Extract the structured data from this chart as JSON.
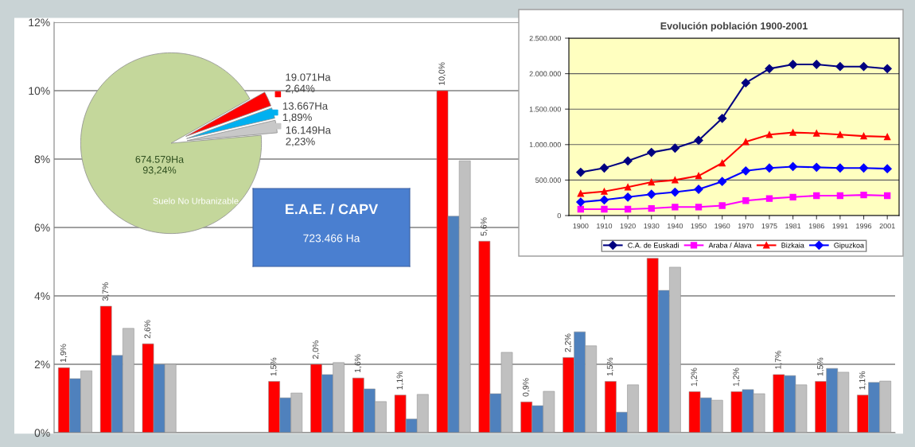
{
  "chart_data": [
    {
      "type": "bar",
      "categories": [
        null,
        null,
        null,
        null,
        null,
        null,
        null,
        null,
        null,
        null,
        null,
        null,
        null,
        null,
        null,
        null,
        null,
        null,
        null,
        null
      ],
      "series": [
        {
          "color": "#ff0000",
          "values": [
            1.9,
            3.7,
            2.6,
            null,
            null,
            1.5,
            2.0,
            1.6,
            1.1,
            10.0,
            5.6,
            0.9,
            2.2,
            1.5,
            5.1,
            1.2,
            1.2,
            1.7,
            1.5,
            1.1
          ],
          "value_labels": [
            "1,9%",
            "3,7%",
            "2,6%",
            null,
            null,
            "1,5%",
            "2,0%",
            "1,6%",
            "1,1%",
            "10,0%",
            "5,6%",
            "0,9%",
            "2,2%",
            "1,5%",
            null,
            "1,2%",
            "1,2%",
            "1,7%",
            "1,5%",
            "1,1%"
          ]
        },
        {
          "color": "#4f81bd",
          "values": [
            1.58,
            2.26,
            2.0,
            null,
            null,
            1.02,
            1.7,
            1.28,
            0.4,
            6.33,
            1.14,
            0.79,
            2.95,
            0.6,
            4.16,
            1.02,
            1.26,
            1.67,
            1.88,
            1.47
          ]
        },
        {
          "color": "#c0c0c0",
          "values": [
            1.81,
            3.05,
            2.0,
            null,
            null,
            1.16,
            2.05,
            0.91,
            1.12,
            7.95,
            2.35,
            1.21,
            2.54,
            1.4,
            4.84,
            0.95,
            1.14,
            1.4,
            1.77,
            1.51
          ]
        }
      ],
      "ylim": [
        0,
        12
      ],
      "yticks": [
        {
          "value": 0,
          "label": "0%"
        },
        {
          "value": 2,
          "label": "2%"
        },
        {
          "value": 4,
          "label": "4%"
        },
        {
          "value": 6,
          "label": "6%"
        },
        {
          "value": 8,
          "label": "8%"
        },
        {
          "value": 10,
          "label": "10%"
        },
        {
          "value": 12,
          "label": "12%"
        }
      ],
      "grid": "y"
    },
    {
      "type": "pie",
      "categories": [
        null,
        null,
        null,
        "Suelo No Urbanizable"
      ],
      "values": [
        2.23,
        1.89,
        2.64,
        93.24
      ],
      "colors": [
        "#c8c8c8",
        "#00b0f0",
        "#ff0000",
        "#c4d79b"
      ],
      "value_labels": [
        "16.149Ha\n2,23%",
        "13.667Ha\n1,89%",
        "19.071Ha\n2,64%",
        "674.579Ha\n93,24%"
      ]
    },
    {
      "type": "other",
      "title": "E.A.E. / CAPV",
      "annotations": [
        "723.466 Ha"
      ]
    },
    {
      "type": "line",
      "title": "Evolución población 1900-2001",
      "categories": [
        "1900",
        "1910",
        "1920",
        "1930",
        "1940",
        "1950",
        "1960",
        "1970",
        "1975",
        "1981",
        "1986",
        "1991",
        "1996",
        "2001"
      ],
      "series": [
        {
          "name": "C.A. de Euskadi",
          "color": "#000080",
          "marker": "diamond",
          "values": [
            610000,
            670000,
            770000,
            890000,
            950000,
            1060000,
            1370000,
            1870000,
            2070000,
            2130000,
            2130000,
            2100000,
            2100000,
            2070000
          ]
        },
        {
          "name": "Araba / Álava",
          "color": "#ff00ff",
          "marker": "square",
          "values": [
            90000,
            90000,
            90000,
            100000,
            120000,
            120000,
            140000,
            210000,
            240000,
            260000,
            280000,
            280000,
            290000,
            280000
          ]
        },
        {
          "name": "Bizkaia",
          "color": "#ff0000",
          "marker": "triangle",
          "values": [
            310000,
            340000,
            400000,
            470000,
            500000,
            560000,
            740000,
            1040000,
            1140000,
            1170000,
            1160000,
            1140000,
            1120000,
            1110000
          ]
        },
        {
          "name": "Gipuzkoa",
          "color": "#0000ff",
          "marker": "diamond",
          "values": [
            190000,
            220000,
            260000,
            300000,
            330000,
            370000,
            480000,
            630000,
            670000,
            690000,
            680000,
            670000,
            670000,
            660000
          ]
        }
      ],
      "ylim": [
        0,
        2500000
      ],
      "yticks": [
        0,
        {
          "value": 500000,
          "label": "500.000"
        },
        {
          "value": 1000000,
          "label": "1.000.000"
        },
        {
          "value": 1500000,
          "label": "1.500.000"
        },
        {
          "value": 2000000,
          "label": "2.000.000"
        },
        {
          "value": 2500000,
          "label": "2.500.000"
        }
      ],
      "grid": "y",
      "legend": "bottom"
    }
  ]
}
